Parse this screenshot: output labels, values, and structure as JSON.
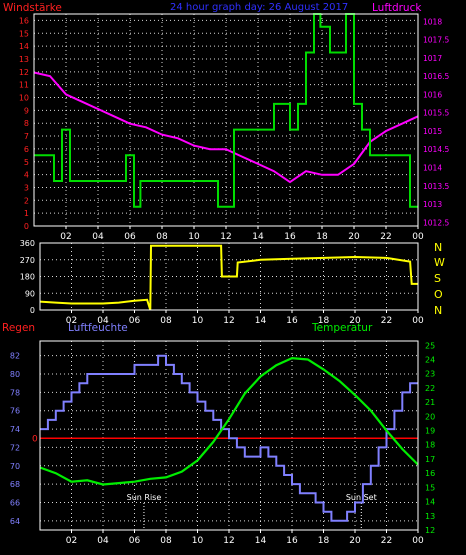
{
  "header": {
    "left_label": "Windstärke",
    "center_label": "24 hour graph day: 26 August 2017",
    "right_label": "Luftdruck"
  },
  "colors": {
    "background": "#000000",
    "frame": "#ffffff",
    "grid": "#ffffff",
    "wind": "#00dd00",
    "pressure": "#ff00ff",
    "direction": "#ffff00",
    "humidity": "#8080ff",
    "temperature": "#00ee00",
    "rain": "#ff0000",
    "sun": "#ffffff"
  },
  "chart_data": [
    {
      "type": "line",
      "id": "wind-pressure",
      "title": "24 hour graph day: 26 August 2017",
      "x_tick_labels": [
        "02",
        "04",
        "06",
        "08",
        "10",
        "12",
        "14",
        "16",
        "18",
        "20",
        "22",
        "00"
      ],
      "xlim": [
        0,
        24
      ],
      "y_left": {
        "label": "Windstärke",
        "ylim": [
          0,
          16.5
        ],
        "ticks": [
          0,
          1,
          2,
          3,
          4,
          5,
          6,
          7,
          8,
          9,
          10,
          11,
          12,
          13,
          14,
          15,
          16
        ]
      },
      "y_right": {
        "label": "Luftdruck",
        "ylim": [
          1012.4,
          1018.2
        ],
        "ticks": [
          "1018",
          "1017.5",
          "1017",
          "1016.5",
          "1016",
          "1015.5",
          "1015",
          "1014.5",
          "1014",
          "1013.5",
          "1013",
          "1012.5"
        ]
      },
      "series": [
        {
          "name": "Windstärke",
          "axis": "left",
          "step": true,
          "x": [
            0,
            1.25,
            1.75,
            2.25,
            5.75,
            6.25,
            6.65,
            11.5,
            12.5,
            14.5,
            15.0,
            16.0,
            16.5,
            17.0,
            17.5,
            17.9,
            18.5,
            19.5,
            20.0,
            20.5,
            21.0,
            23.5,
            24
          ],
          "y": [
            5.5,
            3.5,
            7.5,
            3.5,
            5.5,
            1.5,
            3.5,
            1.5,
            7.5,
            7.5,
            9.5,
            7.5,
            9.5,
            13.5,
            17.0,
            15.5,
            13.5,
            17.0,
            9.5,
            7.5,
            5.5,
            1.5,
            1.5
          ]
        },
        {
          "name": "Luftdruck",
          "axis": "right",
          "x": [
            0,
            1.0,
            2.0,
            3.0,
            4.0,
            5.0,
            6.0,
            7.0,
            8.0,
            9.0,
            10.0,
            11.0,
            12.0,
            13.0,
            14.0,
            15.0,
            16.0,
            17.0,
            18.0,
            19.0,
            20.0,
            21.0,
            22.0,
            23.0,
            24.0
          ],
          "y": [
            1016.6,
            1016.5,
            1016.0,
            1015.8,
            1015.6,
            1015.4,
            1015.2,
            1015.1,
            1014.9,
            1014.8,
            1014.6,
            1014.5,
            1014.5,
            1014.3,
            1014.1,
            1013.9,
            1013.6,
            1013.9,
            1013.8,
            1013.8,
            1014.1,
            1014.7,
            1015.0,
            1015.2,
            1015.4
          ]
        }
      ]
    },
    {
      "type": "line",
      "id": "wind-direction",
      "x_tick_labels": [
        "02",
        "04",
        "06",
        "08",
        "10",
        "12",
        "14",
        "16",
        "18",
        "20",
        "22",
        "00"
      ],
      "xlim": [
        0,
        24
      ],
      "y_left": {
        "ylim": [
          0,
          360
        ],
        "ticks": [
          "0",
          "90",
          "180",
          "270",
          "360"
        ]
      },
      "y_right_labels": [
        "N",
        "W",
        "S",
        "O",
        "N"
      ],
      "series": [
        {
          "name": "Windrichtung",
          "x": [
            0,
            1.0,
            2.0,
            3.0,
            4.0,
            5.0,
            6.0,
            6.8,
            7.0,
            7.05,
            8.0,
            9.0,
            10.0,
            11.0,
            11.5,
            11.55,
            12.5,
            12.55,
            14.0,
            16.0,
            18.0,
            20.0,
            22.0,
            23.5,
            23.6,
            24.0
          ],
          "y": [
            45,
            40,
            35,
            35,
            35,
            40,
            50,
            55,
            0,
            345,
            345,
            345,
            345,
            345,
            345,
            180,
            180,
            255,
            270,
            275,
            280,
            285,
            280,
            260,
            140,
            140
          ]
        }
      ]
    },
    {
      "type": "line",
      "id": "humidity-temperature",
      "x_tick_labels": [
        "02",
        "04",
        "06",
        "08",
        "10",
        "12",
        "14",
        "16",
        "18",
        "20",
        "22",
        "00"
      ],
      "xlim": [
        0,
        24
      ],
      "y_left_label": "Regen",
      "y_left2": {
        "label": "Luftfeuchte",
        "ylim": [
          63,
          83.6
        ],
        "ticks": [
          "82",
          "80",
          "78",
          "76",
          "74",
          "72",
          "70",
          "68",
          "66",
          "64"
        ]
      },
      "y_right": {
        "label": "Temperatur",
        "ylim": [
          12,
          25.3
        ],
        "ticks": [
          "25",
          "24",
          "23",
          "22",
          "21",
          "20",
          "19",
          "18",
          "17",
          "16",
          "15",
          "14",
          "13",
          "12"
        ]
      },
      "rain_axis_label": "0",
      "annotations": [
        {
          "label": "Sun Rise",
          "x": 6.6
        },
        {
          "label": "Sun Set",
          "x": 20.4
        }
      ],
      "series": [
        {
          "name": "Luftfeuchte",
          "axis": "left2",
          "step": true,
          "x": [
            0,
            0.5,
            1.0,
            1.5,
            2.0,
            2.5,
            3.0,
            5.0,
            6.0,
            7.0,
            7.5,
            8.0,
            8.5,
            9.0,
            9.5,
            10.0,
            10.5,
            11.0,
            11.5,
            12.0,
            12.5,
            13.0,
            14.0,
            14.5,
            15.0,
            15.5,
            16.0,
            16.5,
            17.0,
            17.5,
            18.0,
            18.5,
            19.0,
            19.5,
            20.0,
            20.5,
            21.0,
            21.5,
            22.0,
            22.5,
            23.0,
            23.5,
            24.0
          ],
          "y": [
            74,
            75,
            76,
            77,
            78,
            79,
            80,
            80,
            81,
            81,
            82,
            81,
            80,
            79,
            78,
            77,
            76,
            75,
            74,
            73,
            72,
            71,
            72,
            71,
            70,
            69,
            68,
            67,
            67,
            66,
            65,
            64,
            64,
            65,
            66,
            68,
            70,
            72,
            74,
            76,
            78,
            79,
            79
          ]
        },
        {
          "name": "Temperatur",
          "axis": "right",
          "x": [
            0,
            1.0,
            2.0,
            3.0,
            4.0,
            5.0,
            6.0,
            7.0,
            8.0,
            9.0,
            10.0,
            11.0,
            12.0,
            13.0,
            14.0,
            15.0,
            16.0,
            17.0,
            18.0,
            19.0,
            20.0,
            21.0,
            22.0,
            23.0,
            24.0
          ],
          "y": [
            16.4,
            16.0,
            15.4,
            15.5,
            15.2,
            15.3,
            15.4,
            15.6,
            15.7,
            16.1,
            16.9,
            18.2,
            19.8,
            21.6,
            22.8,
            23.6,
            24.1,
            24.0,
            23.3,
            22.5,
            21.5,
            20.4,
            19.0,
            17.7,
            16.6
          ]
        },
        {
          "name": "Regen",
          "axis": "rain",
          "x": [
            0,
            24
          ],
          "y": [
            0,
            0
          ]
        }
      ]
    }
  ],
  "panel2_right_labels": [
    "N",
    "W",
    "S",
    "O",
    "N"
  ],
  "panel3_labels": {
    "rain": "Regen",
    "humidity": "Luftfeuchte",
    "temperature": "Temperatur"
  }
}
